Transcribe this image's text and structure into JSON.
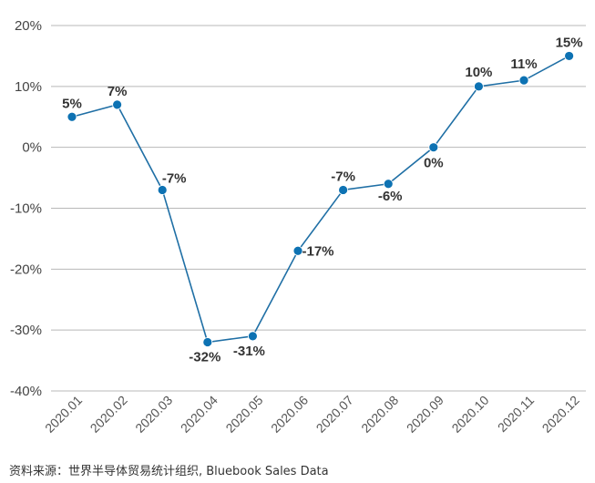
{
  "chart_data": {
    "type": "line",
    "title": "",
    "xlabel": "",
    "ylabel": "",
    "categories": [
      "2020.01",
      "2020.02",
      "2020.03",
      "2020.04",
      "2020.05",
      "2020.06",
      "2020.07",
      "2020.08",
      "2020.09",
      "2020.10",
      "2020.11",
      "2020.12"
    ],
    "series": [
      {
        "values": [
          5,
          7,
          -7,
          -32,
          -31,
          -17,
          -7,
          -6,
          0,
          10,
          11,
          15
        ],
        "labels": [
          "5%",
          "7%",
          "-7%",
          "-32%",
          "-31%",
          "-17%",
          "-7%",
          "-6%",
          "0%",
          "10%",
          "11%",
          "15%"
        ]
      }
    ],
    "ylim": [
      -40,
      20
    ],
    "yticks": [
      20,
      10,
      0,
      -10,
      -20,
      -30,
      -40
    ],
    "ytick_labels": [
      "20%",
      "10%",
      "0%",
      "-10%",
      "-20%",
      "-30%",
      "-40%"
    ],
    "grid": "horizontal",
    "colors": {
      "line": "#1f6fa5",
      "marker": "#0d72b3",
      "grid": "#b8b8b8"
    }
  },
  "source_note": "资料来源：世界半导体贸易统计组织, Bluebook Sales Data"
}
